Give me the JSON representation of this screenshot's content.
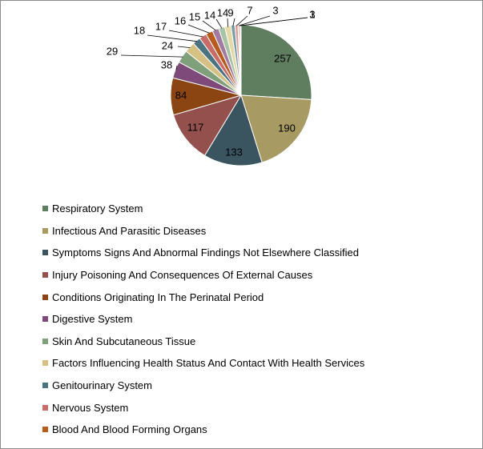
{
  "chart_data": {
    "type": "pie",
    "slices": [
      {
        "label": "",
        "value": 257,
        "color": "#5f7d5f"
      },
      {
        "label": "",
        "value": 190,
        "color": "#a89a63"
      },
      {
        "label": "",
        "value": 133,
        "color": "#3b5560"
      },
      {
        "label": "",
        "value": 117,
        "color": "#93504d"
      },
      {
        "label": "",
        "value": 84,
        "color": "#8a4512"
      },
      {
        "label": "",
        "value": 38,
        "color": "#7d4a7a"
      },
      {
        "label": "",
        "value": 29,
        "color": "#80a07c"
      },
      {
        "label": "",
        "value": 24,
        "color": "#d6c184"
      },
      {
        "label": "",
        "value": 18,
        "color": "#4b7480"
      },
      {
        "label": "",
        "value": 17,
        "color": "#c86c6a"
      },
      {
        "label": "",
        "value": 16,
        "color": "#b85c1e"
      },
      {
        "label": "",
        "value": 15,
        "color": "#a37aa0"
      },
      {
        "label": "",
        "value": 14,
        "color": "#a9c4a4"
      },
      {
        "label": "",
        "value": 14,
        "color": "#e6d9a8"
      },
      {
        "label": "",
        "value": 9,
        "color": "#7a9fa8"
      },
      {
        "label": "",
        "value": 7,
        "color": "#dba09d"
      },
      {
        "label": "",
        "value": 3,
        "color": "#d89060"
      },
      {
        "label": "",
        "value": 3,
        "color": "#c8a8c8"
      },
      {
        "label": "",
        "value": 1,
        "color": "#5f7d5f"
      }
    ],
    "legend": {
      "position": "bottom-left",
      "entries": [
        {
          "label": "Respiratory System",
          "color": "#5f7d5f"
        },
        {
          "label": "Infectious And Parasitic Diseases",
          "color": "#a89a63"
        },
        {
          "label": "Symptoms Signs And Abnormal Findings Not Elsewhere Classified",
          "color": "#3b5560"
        },
        {
          "label": "Injury Poisoning And Consequences Of External Causes",
          "color": "#93504d"
        },
        {
          "label": "Conditions Originating In The Perinatal Period",
          "color": "#8a4512"
        },
        {
          "label": "Digestive System",
          "color": "#7d4a7a"
        },
        {
          "label": "Skin And Subcutaneous Tissue",
          "color": "#80a07c"
        },
        {
          "label": "Factors Influencing Health Status And Contact With Health Services",
          "color": "#d6c184"
        },
        {
          "label": "Genitourinary System",
          "color": "#4b7480"
        },
        {
          "label": "Nervous System",
          "color": "#c86c6a"
        },
        {
          "label": "Blood And Blood Forming Organs",
          "color": "#b85c1e"
        }
      ]
    },
    "data_labels": true,
    "start_angle_deg": 0,
    "direction": "clockwise"
  }
}
